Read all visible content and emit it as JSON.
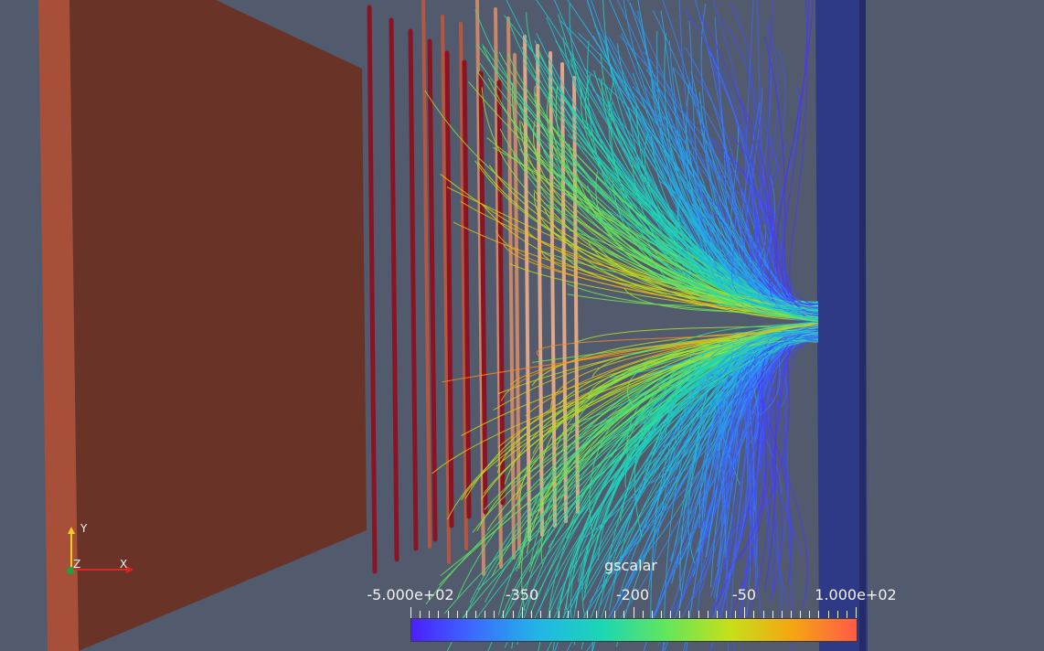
{
  "render_view": {
    "colorbar": {
      "title": "gscalar",
      "tick_labels": [
        "-5.000e+02",
        "-350",
        "-200",
        "-50",
        "1.000e+02"
      ],
      "range": [
        -500,
        100
      ],
      "colormap": [
        "#4b1fff",
        "#3b6cff",
        "#21b6e6",
        "#1cd6b4",
        "#62e65c",
        "#c5e01a",
        "#f5a512",
        "#ff5a47"
      ]
    },
    "orientation_axes": {
      "x_label": "X",
      "y_label": "Y",
      "z_label": "Z",
      "x_color": "#e52222",
      "y_color": "#e8d020",
      "z_color": "#20a040"
    },
    "objects": {
      "left_plate_color": "#6a3327",
      "left_plate_edge_color": "#a84f3a",
      "right_plate_color": "#2e3a86",
      "rod_colors": [
        "#8a1424",
        "#b45640",
        "#c9876a",
        "#e0a688"
      ]
    }
  }
}
